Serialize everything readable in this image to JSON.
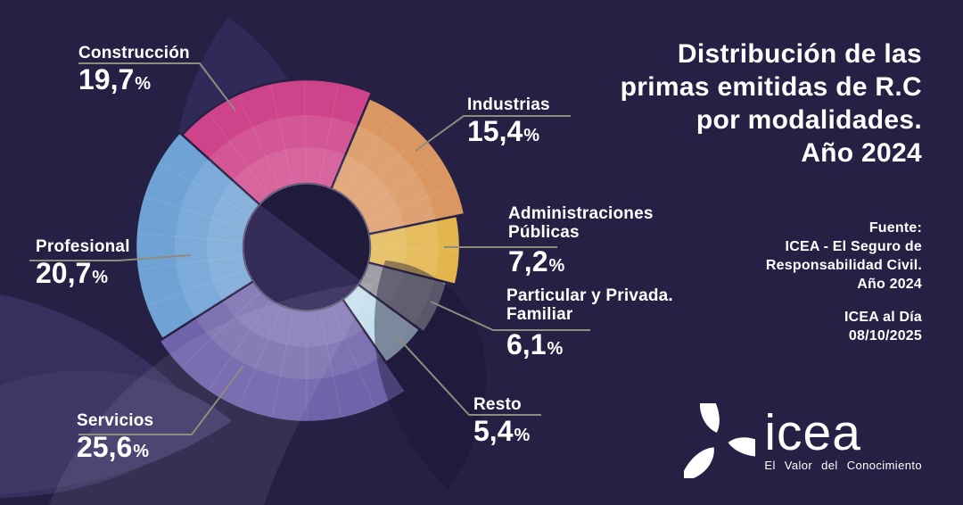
{
  "header": {
    "title_lines": [
      "Distribución de las",
      "primas emitidas de R.C",
      "por modalidades.",
      "Año 2024"
    ]
  },
  "source": {
    "lines": [
      "Fuente:",
      "ICEA - El Seguro de",
      "Responsabilidad Civil.",
      "Año 2024"
    ],
    "edition_lines": [
      "ICEA al Día",
      "08/10/2025"
    ]
  },
  "brand": {
    "name": "icea",
    "tagline": "El Valor del Conocimiento"
  },
  "colors": {
    "background": "#262045",
    "text": "#ffffff",
    "leader": "#8f8c7e",
    "petal_dark": "#2f2a58",
    "petal_mid": "#37305e",
    "petal_light": "#3f3867",
    "hole_dark": "#201b3b",
    "hole_light": "#332c59"
  },
  "chart_data": {
    "type": "pie",
    "variant": "donut-rose",
    "title": "Distribución de las primas emitidas de R.C por modalidades. Año 2024",
    "unit": "%",
    "percent_sign": "%",
    "legend_position": "callout-labels",
    "start_angle_deg": -48,
    "center": [
      344,
      277
    ],
    "hole_radius": 71,
    "ring_radii": [
      112,
      148
    ],
    "slices": [
      {
        "label_lines": [
          "Construcción"
        ],
        "value": 19.7,
        "value_label": "19,7",
        "color": "#ce4389",
        "outer_radius": 188
      },
      {
        "label_lines": [
          "Industrias"
        ],
        "value": 15.4,
        "value_label": "15,4",
        "color": "#db9761",
        "outer_radius": 181
      },
      {
        "label_lines": [
          "Administraciones",
          "Públicas"
        ],
        "value": 7.2,
        "value_label": "7,2",
        "color": "#e2b64d",
        "outer_radius": 172
      },
      {
        "label_lines": [
          "Particular y Privada.",
          "Familiar"
        ],
        "value": 6.1,
        "value_label": "6,1",
        "color": "#8b8995",
        "outer_radius": 162
      },
      {
        "label_lines": [
          "Resto"
        ],
        "value": 5.4,
        "value_label": "5,4",
        "color": "#bedbe9",
        "outer_radius": 157
      },
      {
        "label_lines": [
          "Servicios"
        ],
        "value": 25.6,
        "value_label": "25,6",
        "color": "#7163aa",
        "outer_radius": 196
      },
      {
        "label_lines": [
          "Profesional"
        ],
        "value": 20.7,
        "value_label": "20,7",
        "color": "#6fa2d5",
        "outer_radius": 192
      }
    ]
  }
}
